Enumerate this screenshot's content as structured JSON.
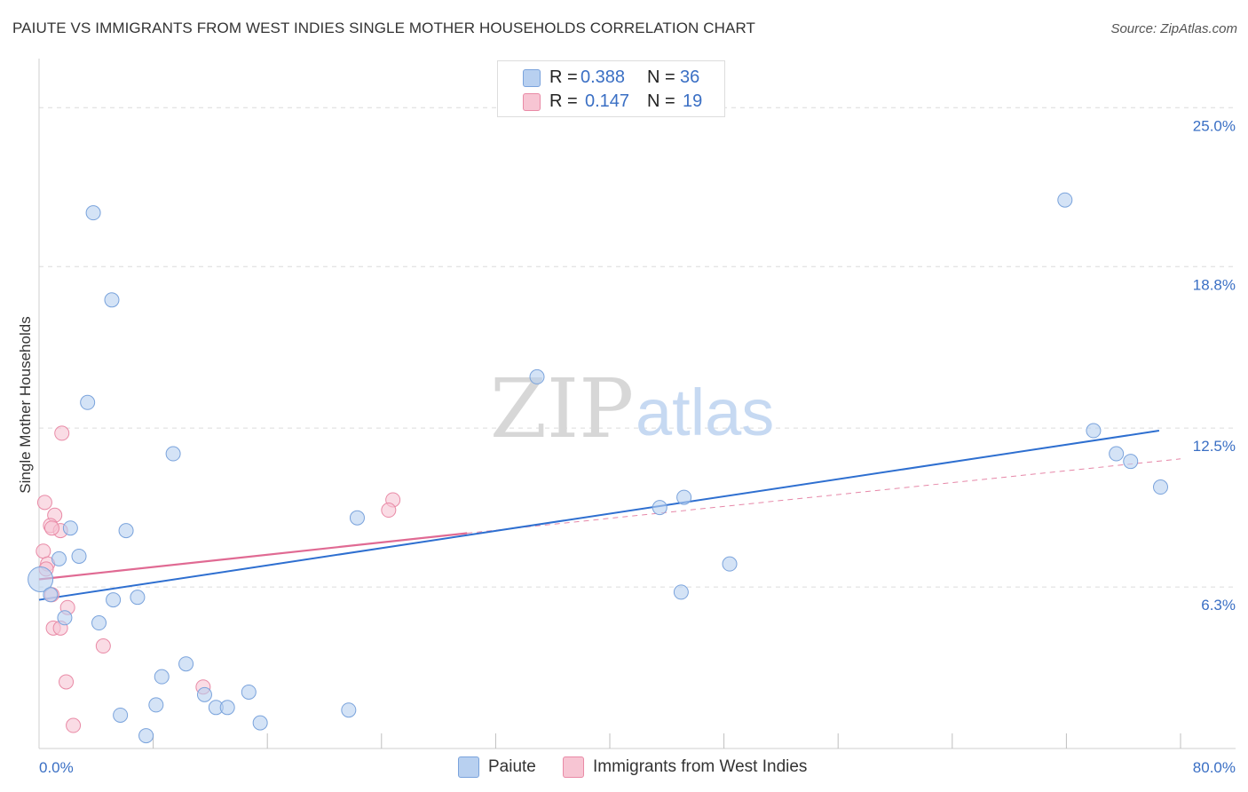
{
  "title": "PAIUTE VS IMMIGRANTS FROM WEST INDIES SINGLE MOTHER HOUSEHOLDS CORRELATION CHART",
  "source": "Source: ZipAtlas.com",
  "watermark": {
    "zip": "ZIP",
    "atlas": "atlas"
  },
  "legend": {
    "r_label": "R =",
    "n_label": "N =",
    "series": [
      {
        "r": "0.388",
        "n": "36"
      },
      {
        "r": "0.147",
        "n": "19"
      }
    ]
  },
  "colors": {
    "blue_fill": "#b8d0f0",
    "blue_stroke": "#7aa3dc",
    "blue_line": "#2e6fd0",
    "pink_fill": "#f7c5d3",
    "pink_stroke": "#e98aa6",
    "pink_line": "#e06a93",
    "axis_text": "#3a6fc4"
  },
  "chart_data": {
    "type": "scatter",
    "title": "PAIUTE VS IMMIGRANTS FROM WEST INDIES SINGLE MOTHER HOUSEHOLDS CORRELATION CHART",
    "xlabel": "",
    "ylabel": "Single Mother Households",
    "xlim": [
      0,
      80
    ],
    "ylim": [
      0,
      26.5
    ],
    "x_tick_labels": [
      "0.0%",
      "80.0%"
    ],
    "y_ticks": [
      6.3,
      12.5,
      18.8,
      25.0
    ],
    "y_tick_labels": [
      "6.3%",
      "12.5%",
      "18.8%",
      "25.0%"
    ],
    "grid": true,
    "series": [
      {
        "name": "Paiute",
        "points": [
          [
            3.8,
            20.9
          ],
          [
            5.1,
            17.5
          ],
          [
            3.4,
            13.5
          ],
          [
            9.4,
            11.5
          ],
          [
            2.2,
            8.6
          ],
          [
            6.1,
            8.5
          ],
          [
            1.4,
            7.4
          ],
          [
            2.8,
            7.5
          ],
          [
            0.1,
            6.6
          ],
          [
            0.8,
            6.0
          ],
          [
            5.2,
            5.8
          ],
          [
            6.9,
            5.9
          ],
          [
            1.8,
            5.1
          ],
          [
            4.2,
            4.9
          ],
          [
            10.3,
            3.3
          ],
          [
            8.6,
            2.8
          ],
          [
            11.6,
            2.1
          ],
          [
            14.7,
            2.2
          ],
          [
            8.2,
            1.7
          ],
          [
            12.4,
            1.6
          ],
          [
            13.2,
            1.6
          ],
          [
            5.7,
            1.3
          ],
          [
            15.5,
            1.0
          ],
          [
            7.5,
            0.5
          ],
          [
            22.3,
            9.0
          ],
          [
            21.7,
            1.5
          ],
          [
            34.9,
            14.5
          ],
          [
            43.5,
            9.4
          ],
          [
            45.2,
            9.8
          ],
          [
            45.0,
            6.1
          ],
          [
            48.4,
            7.2
          ],
          [
            71.9,
            21.4
          ],
          [
            73.9,
            12.4
          ],
          [
            75.5,
            11.5
          ],
          [
            76.5,
            11.2
          ],
          [
            78.6,
            10.2
          ]
        ],
        "trend": {
          "x": [
            0,
            78.5
          ],
          "y": [
            5.8,
            12.4
          ]
        }
      },
      {
        "name": "Immigrants from West Indies",
        "points": [
          [
            1.6,
            12.3
          ],
          [
            0.4,
            9.6
          ],
          [
            1.1,
            9.1
          ],
          [
            0.8,
            8.7
          ],
          [
            1.5,
            8.5
          ],
          [
            0.9,
            8.6
          ],
          [
            0.3,
            7.7
          ],
          [
            0.6,
            7.2
          ],
          [
            0.5,
            7.0
          ],
          [
            0.9,
            6.0
          ],
          [
            2.0,
            5.5
          ],
          [
            1.0,
            4.7
          ],
          [
            1.5,
            4.7
          ],
          [
            4.5,
            4.0
          ],
          [
            1.9,
            2.6
          ],
          [
            11.5,
            2.4
          ],
          [
            2.4,
            0.9
          ],
          [
            24.8,
            9.7
          ],
          [
            24.5,
            9.3
          ]
        ],
        "trend": {
          "x": [
            0,
            30
          ],
          "y": [
            6.6,
            8.4
          ]
        },
        "trend_ext": {
          "x": [
            30,
            80
          ],
          "y": [
            8.4,
            11.3
          ]
        }
      }
    ],
    "legend_position": "top-center"
  },
  "bottom_legend": [
    "Paiute",
    "Immigrants from West Indies"
  ]
}
